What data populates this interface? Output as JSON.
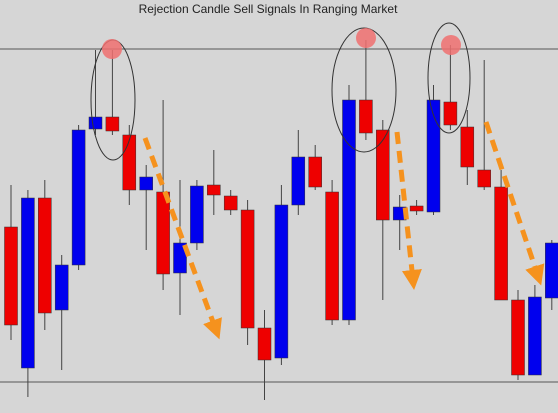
{
  "chart_data": {
    "type": "candlestick",
    "title": "Rejection Candle Sell Signals In Ranging Market",
    "ylim": [
      0,
      413
    ],
    "up_color": "#0000ee",
    "down_color": "#ee0000",
    "level_color": "#555555",
    "levels": [
      364,
      31
    ],
    "open": [
      186,
      45,
      215,
      103,
      148,
      284,
      296,
      278,
      223,
      221,
      140,
      170,
      228,
      217,
      203,
      85,
      55,
      208,
      256,
      221,
      93,
      313,
      283,
      193,
      207,
      201,
      311,
      286,
      243,
      226,
      113,
      38,
      115
    ],
    "high": [
      228,
      223,
      233,
      158,
      288,
      363,
      363,
      288,
      248,
      313,
      233,
      233,
      263,
      223,
      213,
      103,
      228,
      283,
      268,
      233,
      328,
      373,
      293,
      218,
      213,
      328,
      368,
      303,
      353,
      243,
      123,
      128,
      173
    ],
    "low": [
      73,
      16,
      83,
      43,
      143,
      278,
      278,
      208,
      163,
      123,
      98,
      163,
      198,
      198,
      68,
      13,
      48,
      198,
      223,
      88,
      88,
      273,
      113,
      163,
      198,
      198,
      283,
      228,
      223,
      113,
      33,
      38,
      103
    ],
    "close": [
      88,
      215,
      100,
      148,
      283,
      296,
      282,
      223,
      236,
      139,
      170,
      227,
      218,
      203,
      85,
      53,
      208,
      256,
      226,
      93,
      313,
      280,
      193,
      206,
      202,
      313,
      288,
      246,
      226,
      113,
      38,
      116,
      170
    ]
  }
}
